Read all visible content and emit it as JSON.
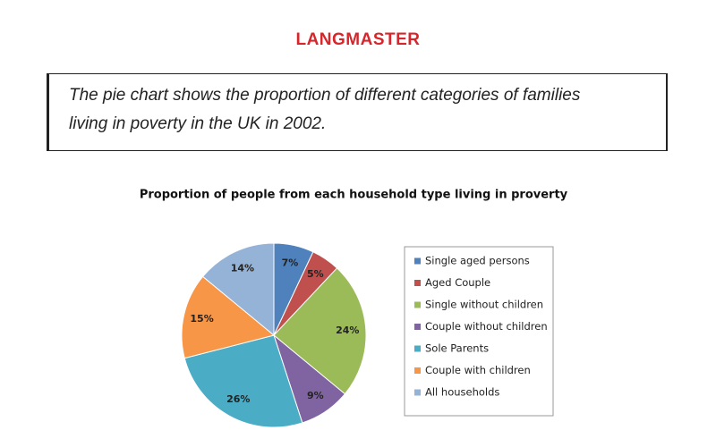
{
  "header": {
    "logo": "LANGMASTER"
  },
  "prompt": "The pie chart shows the proportion of different categories of families living in poverty in the UK in 2002.",
  "chart_data": {
    "type": "pie",
    "title": "Proportion of people from each household type living in proverty",
    "categories": [
      "Single aged persons",
      "Aged Couple",
      "Single without children",
      "Couple without children",
      "Sole Parents",
      "Couple with children",
      "All households"
    ],
    "values": [
      7,
      5,
      24,
      9,
      26,
      15,
      14
    ],
    "value_labels": [
      "7%",
      "5%",
      "24%",
      "9%",
      "26%",
      "15%",
      "14%"
    ],
    "colors": [
      "#4f81bd",
      "#c0504d",
      "#9bbb59",
      "#8064a2",
      "#4bacc6",
      "#f79646",
      "#95b3d7"
    ],
    "legend": "right"
  }
}
